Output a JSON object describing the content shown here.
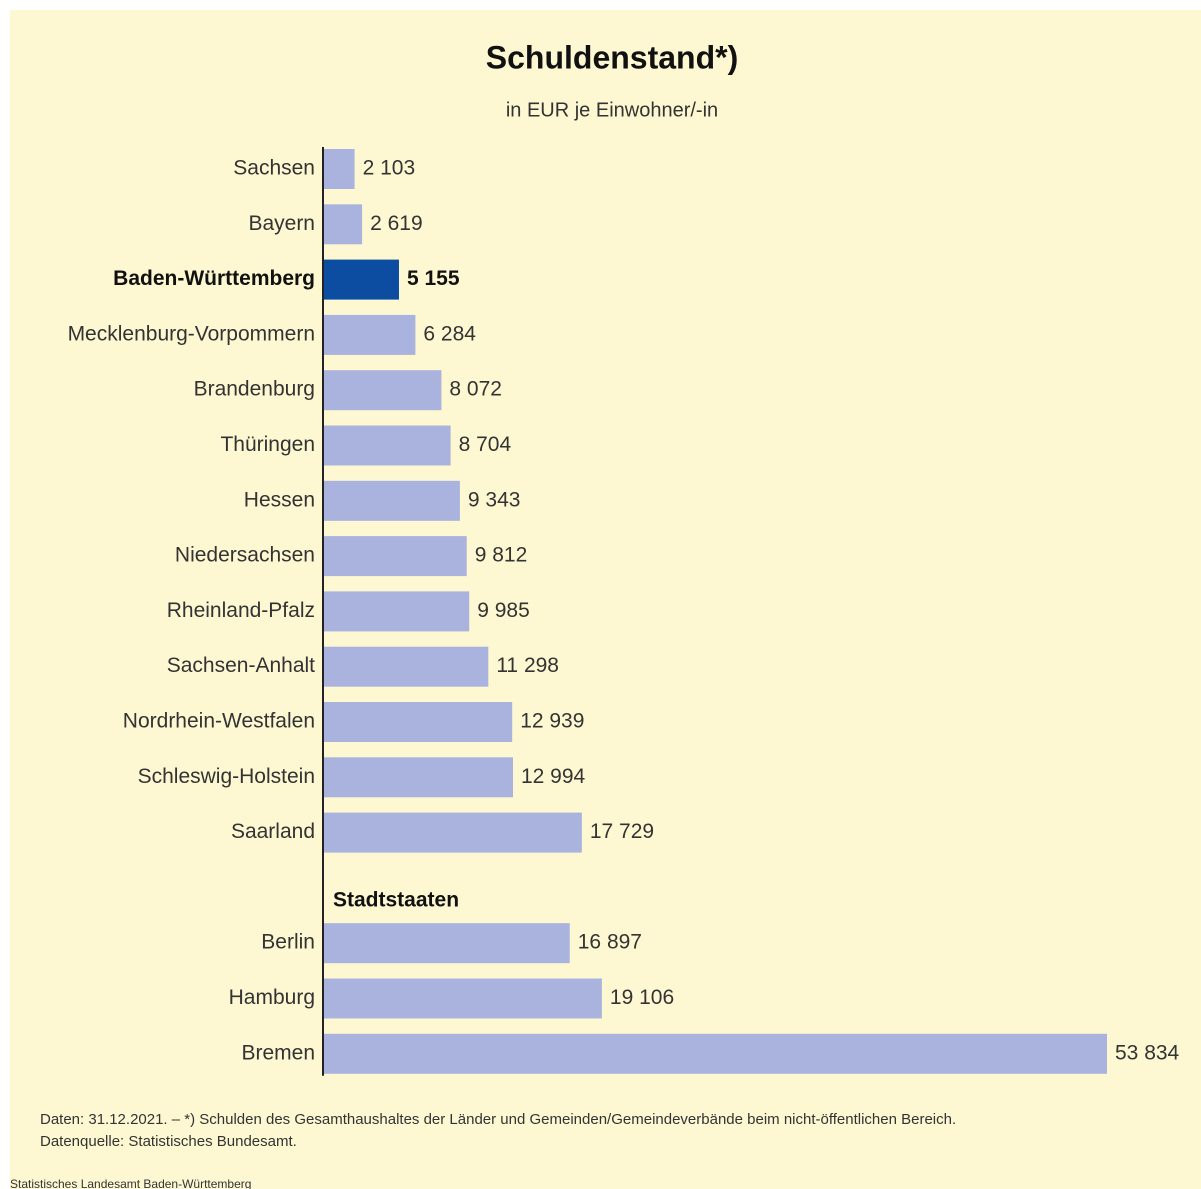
{
  "chart_data": {
    "type": "bar",
    "orientation": "horizontal",
    "title": "Schuldenstand*)",
    "subtitle": "in EUR je Einwohner/-in",
    "categories": [
      "Sachsen",
      "Bayern",
      "Baden-Württemberg",
      "Mecklenburg-Vorpommern",
      "Brandenburg",
      "Thüringen",
      "Hessen",
      "Niedersachsen",
      "Rheinland-Pfalz",
      "Sachsen-Anhalt",
      "Nordrhein-Westfalen",
      "Schleswig-Holstein",
      "Saarland",
      "Stadtstaaten",
      "Berlin",
      "Hamburg",
      "Bremen"
    ],
    "values": [
      2103,
      2619,
      5155,
      6284,
      8072,
      8704,
      9343,
      9812,
      9985,
      11298,
      12939,
      12994,
      17729,
      null,
      16897,
      19106,
      53834
    ],
    "value_labels": [
      "2 103",
      "2 619",
      "5 155",
      "6 284",
      "8 072",
      "8 704",
      "9 343",
      "9 812",
      "9 985",
      "11 298",
      "12 939",
      "12 994",
      "17 729",
      null,
      "16 897",
      "19 106",
      "53 834"
    ],
    "color": "#aab3de",
    "highlight_color": "#0c4da2",
    "highlight_index": 2,
    "footnotes": [
      "Daten: 31.12.2021. – *) Schulden des Gesamthaushaltes der Länder und Gemeinden/Gemeindeverbände beim nicht-öffentlichen Bereich.",
      "Datenquelle: Statistisches Bundesamt."
    ],
    "source": "Statistisches Landesamt Baden-Württemberg"
  }
}
